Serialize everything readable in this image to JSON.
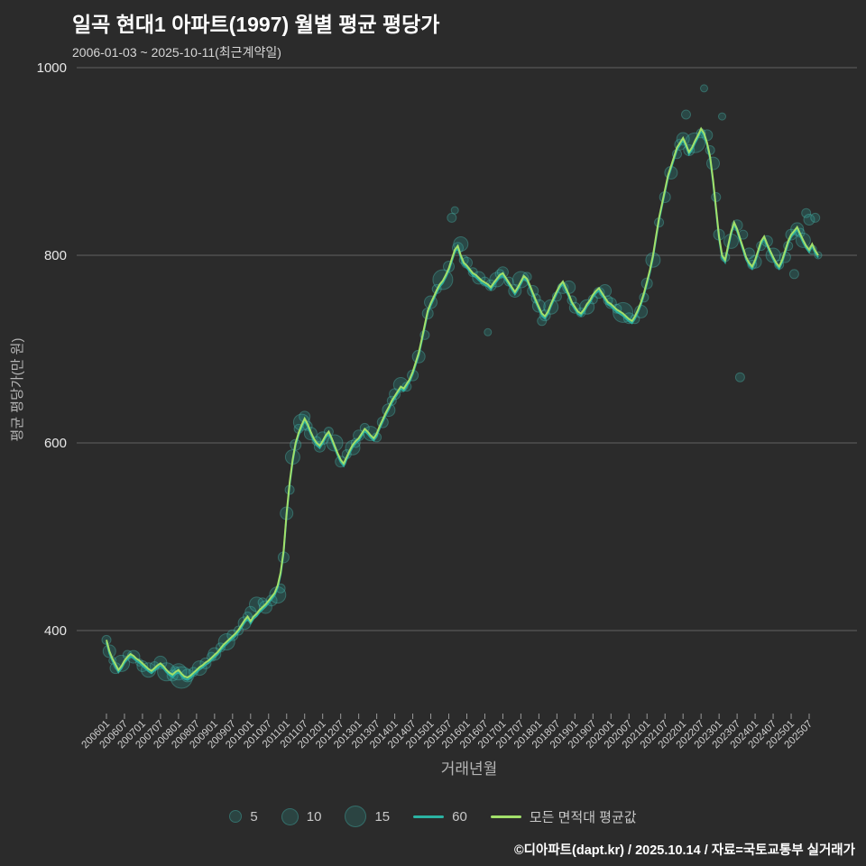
{
  "header": {
    "title": "일곡 현대1 아파트(1997) 월별 평균 평당가",
    "subtitle": "2006-01-03 ~ 2025-10-11(최근계약일)"
  },
  "footer": {
    "credit": "©디아파트(dapt.kr) / 2025.10.14 / 자료=국토교통부 실거래가"
  },
  "legend": {
    "bubbles": [
      {
        "label": "5",
        "d": 12
      },
      {
        "label": "10",
        "d": 17
      },
      {
        "label": "15",
        "d": 22
      }
    ]
  },
  "chart_data": {
    "type": "scatter",
    "title": "일곡 현대1 아파트(1997) 월별 평균 평당가",
    "subtitle": "2006-01-03 ~ 2025-10-11(최근계약일)",
    "xlabel": "거래년월",
    "ylabel": "평균 평당가(만 원)",
    "yticks": [
      400,
      600,
      800,
      1000
    ],
    "ylim": [
      330,
      1010
    ],
    "x_start": "2006-01",
    "x_end": "2025-10",
    "x_tick_labels": [
      "200601",
      "200607",
      "200701",
      "200707",
      "200801",
      "200807",
      "200901",
      "200907",
      "201001",
      "201007",
      "201101",
      "201107",
      "201201",
      "201207",
      "201301",
      "201307",
      "201401",
      "201407",
      "201501",
      "201507",
      "201601",
      "201607",
      "201701",
      "201707",
      "201801",
      "201807",
      "201901",
      "201907",
      "202001",
      "202007",
      "202101",
      "202107",
      "202201",
      "202207",
      "202301",
      "202307",
      "202401",
      "202407",
      "202501",
      "202507"
    ],
    "series": [
      {
        "name": "60",
        "color": "#2bb3a3"
      },
      {
        "name": "모든 면적대 평균값",
        "color": "#a2e06a"
      }
    ],
    "line_values": [
      390,
      378,
      370,
      364,
      358,
      362,
      368,
      372,
      375,
      373,
      370,
      368,
      365,
      362,
      359,
      357,
      360,
      363,
      365,
      362,
      358,
      355,
      353,
      356,
      358,
      354,
      351,
      350,
      352,
      355,
      358,
      361,
      363,
      366,
      368,
      371,
      374,
      377,
      381,
      385,
      388,
      391,
      394,
      397,
      401,
      406,
      411,
      415,
      410,
      415,
      418,
      422,
      425,
      428,
      432,
      436,
      440,
      448,
      462,
      485,
      525,
      558,
      582,
      600,
      611,
      619,
      626,
      620,
      612,
      605,
      600,
      597,
      602,
      608,
      612,
      605,
      597,
      589,
      582,
      578,
      585,
      592,
      598,
      602,
      605,
      610,
      615,
      612,
      608,
      605,
      610,
      618,
      625,
      632,
      638,
      645,
      650,
      655,
      660,
      658,
      663,
      668,
      676,
      686,
      696,
      711,
      726,
      741,
      749,
      756,
      763,
      769,
      773,
      779,
      786,
      796,
      806,
      810,
      800,
      792,
      789,
      785,
      781,
      779,
      776,
      773,
      771,
      769,
      766,
      771,
      775,
      779,
      781,
      776,
      771,
      766,
      761,
      766,
      772,
      778,
      775,
      768,
      760,
      752,
      745,
      738,
      735,
      740,
      748,
      755,
      762,
      768,
      772,
      765,
      758,
      750,
      745,
      740,
      738,
      742,
      748,
      752,
      758,
      762,
      765,
      760,
      755,
      750,
      748,
      745,
      742,
      740,
      738,
      735,
      732,
      730,
      735,
      742,
      750,
      760,
      772,
      785,
      800,
      820,
      840,
      855,
      870,
      885,
      895,
      905,
      915,
      920,
      925,
      918,
      910,
      915,
      922,
      928,
      935,
      930,
      920,
      905,
      880,
      850,
      820,
      800,
      795,
      810,
      825,
      835,
      828,
      818,
      808,
      798,
      792,
      788,
      795,
      805,
      815,
      820,
      812,
      805,
      798,
      792,
      788,
      795,
      805,
      815,
      822,
      826,
      830,
      823,
      816,
      810,
      806,
      812,
      805,
      800
    ],
    "scatter": [
      [
        0,
        390,
        5
      ],
      [
        1,
        378,
        7
      ],
      [
        2,
        368,
        4
      ],
      [
        3,
        360,
        6
      ],
      [
        5,
        365,
        9
      ],
      [
        7,
        374,
        5
      ],
      [
        9,
        372,
        7
      ],
      [
        11,
        366,
        4
      ],
      [
        12,
        362,
        6
      ],
      [
        14,
        358,
        8
      ],
      [
        16,
        362,
        5
      ],
      [
        18,
        366,
        7
      ],
      [
        20,
        356,
        10
      ],
      [
        22,
        352,
        6
      ],
      [
        23,
        358,
        4
      ],
      [
        24,
        356,
        9
      ],
      [
        25,
        350,
        12
      ],
      [
        27,
        352,
        7
      ],
      [
        29,
        356,
        5
      ],
      [
        31,
        360,
        8
      ],
      [
        33,
        365,
        6
      ],
      [
        35,
        372,
        5
      ],
      [
        36,
        375,
        7
      ],
      [
        38,
        382,
        5
      ],
      [
        40,
        388,
        9
      ],
      [
        42,
        395,
        6
      ],
      [
        44,
        400,
        5
      ],
      [
        46,
        408,
        7
      ],
      [
        47,
        415,
        5
      ],
      [
        48,
        420,
        6
      ],
      [
        50,
        428,
        8
      ],
      [
        52,
        430,
        5
      ],
      [
        53,
        425,
        7
      ],
      [
        55,
        432,
        6
      ],
      [
        57,
        438,
        9
      ],
      [
        58,
        445,
        5
      ],
      [
        59,
        478,
        6
      ],
      [
        60,
        525,
        7
      ],
      [
        61,
        550,
        5
      ],
      [
        62,
        585,
        8
      ],
      [
        63,
        598,
        6
      ],
      [
        64,
        615,
        5
      ],
      [
        65,
        622,
        9
      ],
      [
        66,
        628,
        6
      ],
      [
        67,
        618,
        5
      ],
      [
        68,
        610,
        7
      ],
      [
        70,
        602,
        5
      ],
      [
        71,
        596,
        6
      ],
      [
        72,
        605,
        7
      ],
      [
        74,
        612,
        5
      ],
      [
        76,
        600,
        9
      ],
      [
        78,
        580,
        6
      ],
      [
        80,
        588,
        5
      ],
      [
        82,
        595,
        8
      ],
      [
        83,
        600,
        5
      ],
      [
        84,
        608,
        6
      ],
      [
        86,
        616,
        5
      ],
      [
        88,
        610,
        8
      ],
      [
        90,
        606,
        5
      ],
      [
        92,
        622,
        6
      ],
      [
        94,
        635,
        7
      ],
      [
        95,
        645,
        5
      ],
      [
        96,
        652,
        6
      ],
      [
        98,
        662,
        8
      ],
      [
        100,
        660,
        5
      ],
      [
        102,
        672,
        6
      ],
      [
        104,
        692,
        7
      ],
      [
        106,
        715,
        5
      ],
      [
        107,
        738,
        6
      ],
      [
        108,
        750,
        7
      ],
      [
        110,
        764,
        5
      ],
      [
        112,
        774,
        11
      ],
      [
        114,
        788,
        6
      ],
      [
        115,
        840,
        5
      ],
      [
        116,
        848,
        4
      ],
      [
        117,
        808,
        6
      ],
      [
        118,
        812,
        8
      ],
      [
        119,
        795,
        5
      ],
      [
        120,
        792,
        6
      ],
      [
        122,
        782,
        5
      ],
      [
        124,
        776,
        7
      ],
      [
        126,
        772,
        5
      ],
      [
        127,
        718,
        4
      ],
      [
        128,
        768,
        6
      ],
      [
        130,
        774,
        8
      ],
      [
        131,
        780,
        5
      ],
      [
        132,
        782,
        6
      ],
      [
        134,
        772,
        5
      ],
      [
        136,
        762,
        7
      ],
      [
        138,
        774,
        9
      ],
      [
        140,
        777,
        5
      ],
      [
        142,
        762,
        6
      ],
      [
        143,
        754,
        5
      ],
      [
        144,
        746,
        7
      ],
      [
        145,
        730,
        5
      ],
      [
        146,
        736,
        6
      ],
      [
        148,
        745,
        8
      ],
      [
        150,
        756,
        5
      ],
      [
        152,
        765,
        6
      ],
      [
        154,
        766,
        7
      ],
      [
        155,
        752,
        5
      ],
      [
        156,
        744,
        6
      ],
      [
        158,
        739,
        5
      ],
      [
        160,
        745,
        8
      ],
      [
        162,
        753,
        5
      ],
      [
        164,
        760,
        6
      ],
      [
        166,
        762,
        7
      ],
      [
        167,
        752,
        5
      ],
      [
        168,
        749,
        6
      ],
      [
        170,
        743,
        5
      ],
      [
        172,
        739,
        11
      ],
      [
        174,
        733,
        6
      ],
      [
        176,
        732,
        5
      ],
      [
        178,
        740,
        7
      ],
      [
        179,
        755,
        5
      ],
      [
        180,
        770,
        6
      ],
      [
        182,
        795,
        8
      ],
      [
        184,
        835,
        5
      ],
      [
        186,
        862,
        6
      ],
      [
        188,
        888,
        7
      ],
      [
        190,
        908,
        5
      ],
      [
        191,
        918,
        6
      ],
      [
        192,
        924,
        7
      ],
      [
        193,
        950,
        5
      ],
      [
        194,
        912,
        6
      ],
      [
        196,
        920,
        11
      ],
      [
        198,
        930,
        5
      ],
      [
        199,
        978,
        4
      ],
      [
        200,
        928,
        6
      ],
      [
        201,
        912,
        5
      ],
      [
        202,
        898,
        7
      ],
      [
        203,
        862,
        5
      ],
      [
        204,
        822,
        6
      ],
      [
        205,
        948,
        4
      ],
      [
        206,
        798,
        5
      ],
      [
        208,
        815,
        8
      ],
      [
        210,
        832,
        6
      ],
      [
        211,
        670,
        5
      ],
      [
        212,
        822,
        5
      ],
      [
        214,
        802,
        6
      ],
      [
        215,
        790,
        5
      ],
      [
        216,
        793,
        7
      ],
      [
        218,
        810,
        5
      ],
      [
        220,
        815,
        6
      ],
      [
        222,
        800,
        8
      ],
      [
        224,
        790,
        5
      ],
      [
        226,
        798,
        6
      ],
      [
        227,
        810,
        5
      ],
      [
        228,
        822,
        6
      ],
      [
        229,
        780,
        5
      ],
      [
        230,
        828,
        7
      ],
      [
        231,
        824,
        5
      ],
      [
        232,
        816,
        8
      ],
      [
        233,
        845,
        5
      ],
      [
        234,
        838,
        6
      ],
      [
        235,
        806,
        5
      ],
      [
        236,
        840,
        5
      ],
      [
        237,
        800,
        4
      ]
    ]
  }
}
